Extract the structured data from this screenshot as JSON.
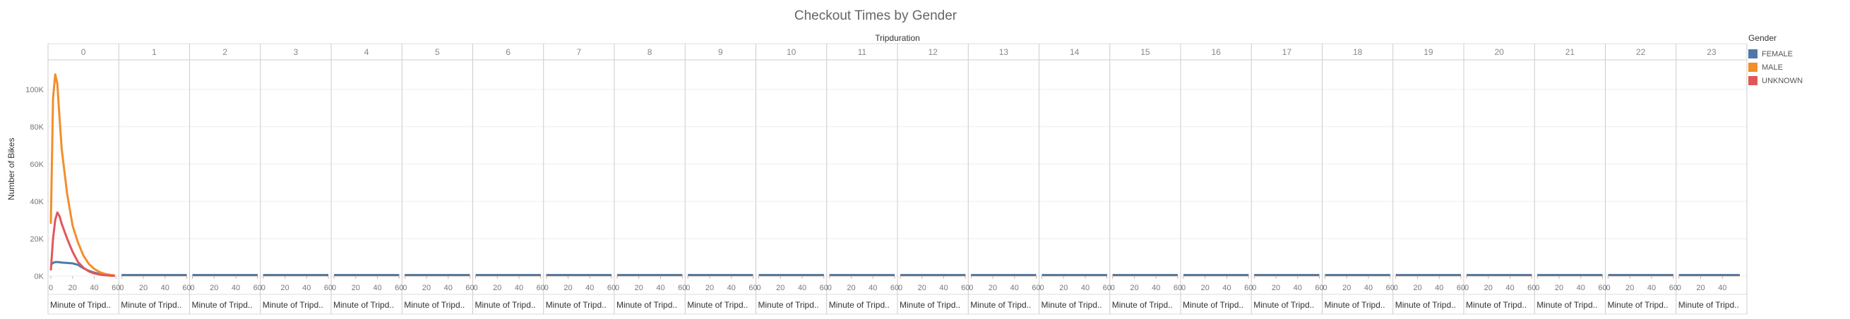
{
  "chart_data": {
    "type": "line",
    "title": "Checkout Times by Gender",
    "column_header": "Tripduration",
    "ylabel": "Number of Bikes",
    "panel_xlabel": "Minute of Tripd..",
    "panels": [
      "0",
      "1",
      "2",
      "3",
      "4",
      "5",
      "6",
      "7",
      "8",
      "9",
      "10",
      "11",
      "12",
      "13",
      "14",
      "15",
      "16",
      "17",
      "18",
      "19",
      "20",
      "21",
      "22",
      "23"
    ],
    "xlim": [
      0,
      60
    ],
    "x_ticks": [
      0,
      20,
      40,
      60
    ],
    "last_panel_x_ticks": [
      0,
      20,
      40
    ],
    "ylim": [
      0,
      112000
    ],
    "y_ticks": [
      0,
      20000,
      40000,
      60000,
      80000,
      100000
    ],
    "y_tick_labels": [
      "0K",
      "20K",
      "40K",
      "60K",
      "80K",
      "100K"
    ],
    "legend_title": "Gender",
    "legend_position": "right",
    "grid": true,
    "panel0": {
      "x": [
        0,
        2,
        4,
        6,
        8,
        10,
        15,
        20,
        25,
        30,
        35,
        40,
        45,
        50,
        55,
        59
      ],
      "series": [
        {
          "name": "FEMALE",
          "color": "#4e79a7",
          "values": [
            6000,
            7000,
            7500,
            7500,
            7400,
            7200,
            7000,
            6800,
            6000,
            4200,
            2800,
            1800,
            1100,
            700,
            400,
            250
          ]
        },
        {
          "name": "MALE",
          "color": "#f28e2b",
          "values": [
            28000,
            95000,
            108000,
            103000,
            85000,
            68000,
            44000,
            27000,
            18000,
            11000,
            6500,
            3800,
            2100,
            1100,
            600,
            300
          ]
        },
        {
          "name": "UNKNOWN",
          "color": "#e15759",
          "values": [
            3000,
            20000,
            30000,
            34000,
            32000,
            28000,
            20000,
            13000,
            7500,
            4500,
            2500,
            1400,
            800,
            400,
            200,
            100
          ]
        }
      ]
    },
    "other_panels_value": 500
  }
}
